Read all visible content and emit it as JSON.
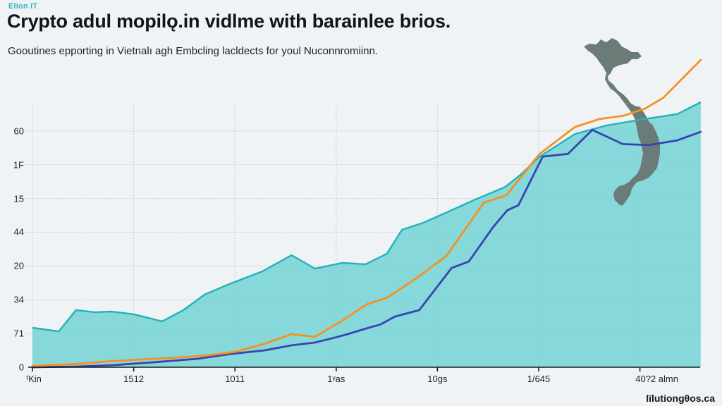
{
  "header": {
    "brand": "Elion IT",
    "title": "Crypto adul mopilǫ.in vidlme with barainlee brios.",
    "subtitle": "Gooutines epporting in Vietnalı agh Embcling lacldects for youl Nuconnromiinn."
  },
  "watermark": "lïlutiongθos.ca",
  "colors": {
    "area_fill": "#7fd6d8",
    "area_line": "#21b3b8",
    "orange_line": "#f5921e",
    "blue_line": "#3a44b0",
    "map": "#6b7b78",
    "grid": "#c9cdd2",
    "axis": "#1a1a1a"
  },
  "chart_data": {
    "type": "area",
    "title": "Crypto adul mopilǫ.in vidlme with barainlee brios.",
    "subtitle": "Gooutines epporting in Vietnalı agh Embcling lacldects for youl Nuconnromiinn.",
    "xlabel": "",
    "ylabel": "",
    "grid": true,
    "legend": "none",
    "xlim": [
      0,
      6.6
    ],
    "ylim": [
      0,
      8
    ],
    "x_ticks": [
      {
        "value": 0,
        "label": "ᶠKin"
      },
      {
        "value": 1,
        "label": "1512"
      },
      {
        "value": 2,
        "label": "1011"
      },
      {
        "value": 3,
        "label": "1ᵞas"
      },
      {
        "value": 4,
        "label": "10gs"
      },
      {
        "value": 5,
        "label": "1/645"
      },
      {
        "value": 6,
        "label": "40?2 almn"
      }
    ],
    "x_gridlines": [
      0,
      1,
      2,
      3,
      4,
      5,
      6
    ],
    "y_ticks": [
      {
        "value": 0,
        "label": "0"
      },
      {
        "value": 1,
        "label": "71"
      },
      {
        "value": 2,
        "label": "34"
      },
      {
        "value": 3,
        "label": "20"
      },
      {
        "value": 4,
        "label": "44"
      },
      {
        "value": 5,
        "label": "15"
      },
      {
        "value": 6,
        "label": "1F"
      },
      {
        "value": 7,
        "label": "60"
      }
    ],
    "series": [
      {
        "name": "teal-area",
        "kind": "area",
        "color": "#21b3b8",
        "x": [
          0,
          0.26,
          0.43,
          0.62,
          0.78,
          1.0,
          1.28,
          1.49,
          1.7,
          1.94,
          2.27,
          2.56,
          2.79,
          3.06,
          3.29,
          3.5,
          3.65,
          3.86,
          4.08,
          4.36,
          4.67,
          4.82,
          5.01,
          5.36,
          5.67,
          6.0,
          6.37,
          6.6
        ],
        "values": [
          1.17,
          1.06,
          1.69,
          1.63,
          1.65,
          1.57,
          1.36,
          1.69,
          2.15,
          2.46,
          2.84,
          3.32,
          2.92,
          3.09,
          3.05,
          3.36,
          4.07,
          4.28,
          4.57,
          4.95,
          5.34,
          5.7,
          6.24,
          6.91,
          7.16,
          7.33,
          7.5,
          7.85
        ]
      },
      {
        "name": "orange-line",
        "kind": "line",
        "color": "#f5921e",
        "x": [
          0,
          0.45,
          0.72,
          1.07,
          1.46,
          1.73,
          2.01,
          2.29,
          2.56,
          2.79,
          3.06,
          3.3,
          3.51,
          3.79,
          4.09,
          4.46,
          4.68,
          5.01,
          5.36,
          5.6,
          5.84,
          6.05,
          6.23,
          6.6
        ],
        "values": [
          0.04,
          0.1,
          0.17,
          0.23,
          0.29,
          0.35,
          0.46,
          0.69,
          0.98,
          0.9,
          1.38,
          1.86,
          2.07,
          2.63,
          3.3,
          4.88,
          5.09,
          6.32,
          7.12,
          7.35,
          7.45,
          7.66,
          7.98,
          9.1
        ]
      },
      {
        "name": "blue-line",
        "kind": "line",
        "color": "#3a44b0",
        "x": [
          0,
          0.45,
          0.79,
          1.21,
          1.63,
          1.98,
          2.29,
          2.56,
          2.79,
          2.99,
          3.09,
          3.3,
          3.44,
          3.58,
          3.82,
          4.14,
          4.31,
          4.55,
          4.69,
          4.8,
          5.04,
          5.29,
          5.53,
          5.83,
          6.09,
          6.37,
          6.6
        ],
        "values": [
          0,
          0.02,
          0.06,
          0.15,
          0.25,
          0.4,
          0.5,
          0.65,
          0.73,
          0.88,
          0.96,
          1.15,
          1.27,
          1.5,
          1.69,
          2.94,
          3.13,
          4.15,
          4.65,
          4.8,
          6.24,
          6.32,
          7.03,
          6.61,
          6.58,
          6.72,
          6.97
        ]
      }
    ]
  }
}
